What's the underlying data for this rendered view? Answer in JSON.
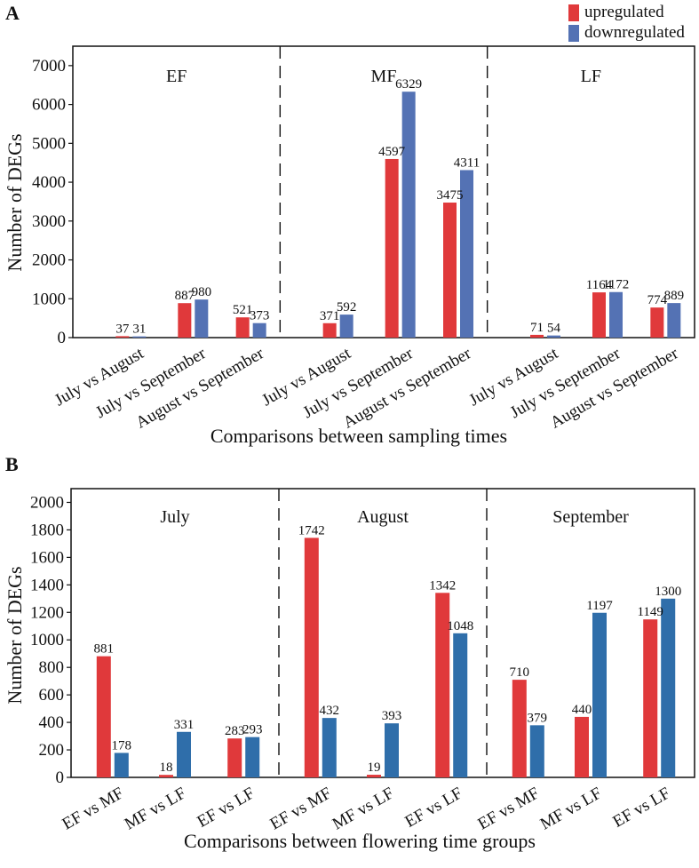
{
  "legend": {
    "upregulated": {
      "label": "upregulated",
      "color": "#e0393b"
    },
    "downregulated": {
      "label": "downregulated",
      "color": "#5472b4"
    }
  },
  "chart_data": [
    {
      "type": "bar",
      "panel": "A",
      "ylabel": "Number of DEGs",
      "xlabel": "Comparisons between sampling times",
      "ylim": [
        0,
        7500
      ],
      "yticks": [
        0,
        1000,
        2000,
        3000,
        4000,
        5000,
        6000,
        7000
      ],
      "colors": {
        "up": "#e0393b",
        "down": "#5472b4"
      },
      "groups": [
        {
          "name": "EF",
          "categories": [
            {
              "label": "July vs August",
              "up": 37,
              "down": 31
            },
            {
              "label": "July vs September",
              "up": 887,
              "down": 980
            },
            {
              "label": "August vs September",
              "up": 521,
              "down": 373
            }
          ]
        },
        {
          "name": "MF",
          "categories": [
            {
              "label": "July vs August",
              "up": 371,
              "down": 592
            },
            {
              "label": "July vs September",
              "up": 4597,
              "down": 6329
            },
            {
              "label": "August vs September",
              "up": 3475,
              "down": 4311
            }
          ]
        },
        {
          "name": "LF",
          "categories": [
            {
              "label": "July vs August",
              "up": 71,
              "down": 54
            },
            {
              "label": "July vs September",
              "up": 1164,
              "down": 1172
            },
            {
              "label": "August vs September",
              "up": 774,
              "down": 889
            }
          ]
        }
      ]
    },
    {
      "type": "bar",
      "panel": "B",
      "ylabel": "Number of DEGs",
      "xlabel": "Comparisons between flowering time groups",
      "ylim": [
        0,
        2100
      ],
      "yticks": [
        0,
        200,
        400,
        600,
        800,
        1000,
        1200,
        1400,
        1600,
        1800,
        2000
      ],
      "colors": {
        "up": "#e0393b",
        "down": "#2f6eaa"
      },
      "groups": [
        {
          "name": "July",
          "categories": [
            {
              "label": "EF vs MF",
              "up": 881,
              "down": 178
            },
            {
              "label": "MF vs LF",
              "up": 18,
              "down": 331
            },
            {
              "label": "EF vs LF",
              "up": 283,
              "down": 293
            }
          ]
        },
        {
          "name": "August",
          "categories": [
            {
              "label": "EF vs MF",
              "up": 1742,
              "down": 432
            },
            {
              "label": "MF vs LF",
              "up": 19,
              "down": 393
            },
            {
              "label": "EF vs LF",
              "up": 1342,
              "down": 1048
            }
          ]
        },
        {
          "name": "September",
          "categories": [
            {
              "label": "EF vs MF",
              "up": 710,
              "down": 379
            },
            {
              "label": "MF vs LF",
              "up": 440,
              "down": 1197
            },
            {
              "label": "EF vs LF",
              "up": 1149,
              "down": 1300
            }
          ]
        }
      ]
    }
  ]
}
